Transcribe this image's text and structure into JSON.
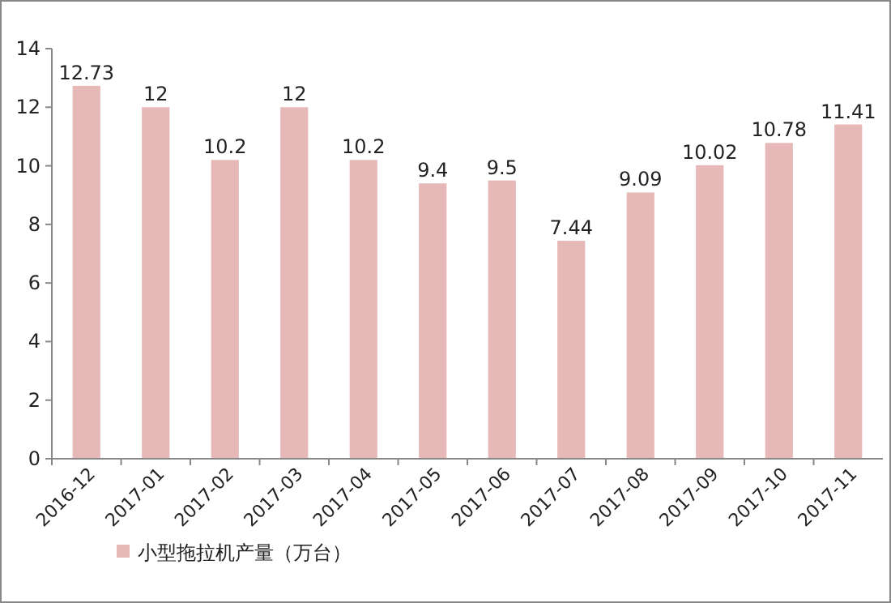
{
  "chart_data": {
    "type": "bar",
    "categories": [
      "2016-12",
      "2017-01",
      "2017-02",
      "2017-03",
      "2017-04",
      "2017-05",
      "2017-06",
      "2017-07",
      "2017-08",
      "2017-09",
      "2017-10",
      "2017-11"
    ],
    "series": [
      {
        "name": "小型拖拉机产量（万台）",
        "color": "#e6b9b8",
        "values": [
          12.73,
          12,
          10.2,
          12,
          10.2,
          9.4,
          9.5,
          7.44,
          9.09,
          10.02,
          10.78,
          11.41
        ]
      }
    ],
    "ylim": [
      0,
      14
    ],
    "yticks": [
      0,
      2,
      4,
      6,
      8,
      10,
      12,
      14
    ],
    "data_labels": true,
    "legend": "bottom",
    "grid": false
  }
}
